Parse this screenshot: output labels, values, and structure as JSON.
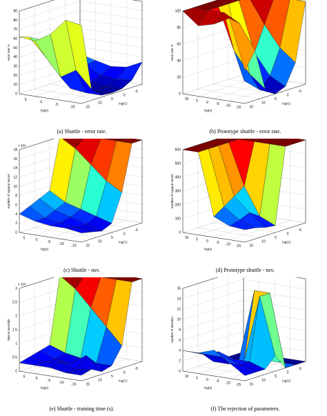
{
  "colormap": [
    "#00008f",
    "#0000ff",
    "#007fff",
    "#00ffff",
    "#7fff7f",
    "#ffff00",
    "#ff7f00",
    "#ff0000",
    "#7f0000"
  ],
  "chart_data": [
    {
      "type": "surface3d",
      "caption": "(a)  Shuttle - error rate.",
      "xlabel": "log(γ)",
      "ylabel": "log(C)",
      "zlabel": "error rate %",
      "x_ticks": [
        "-10",
        "-5",
        "0",
        "5"
      ],
      "y_ticks": [
        "15",
        "10",
        "5",
        "0",
        "-5"
      ],
      "z_ticks": [
        "90",
        "80",
        "70",
        "60",
        "50",
        "40",
        "30",
        "20",
        "10",
        "0"
      ],
      "z_multiplier": "",
      "zlim": [
        0,
        90
      ],
      "surface": [
        [
          22,
          28,
          34,
          42,
          52,
          58,
          62
        ],
        [
          18,
          16,
          14,
          18,
          28,
          40,
          60
        ],
        [
          14,
          8,
          4,
          2,
          4,
          20,
          70
        ],
        [
          16,
          6,
          2,
          1,
          2,
          30,
          88
        ],
        [
          24,
          8,
          2,
          1,
          2,
          12,
          85
        ]
      ]
    },
    {
      "type": "surface3d",
      "caption": "(b)  Prototype shuttle - error rate.",
      "xlabel": "log(γ)",
      "ylabel": "log(C)",
      "zlabel": "error rate %",
      "x_ticks": [
        "-15",
        "-10",
        "-5",
        "0",
        "5",
        "10"
      ],
      "y_ticks": [
        "15",
        "10",
        "5",
        "0",
        "-5"
      ],
      "z_ticks": [
        "100",
        "80",
        "60",
        "40",
        "20",
        "0"
      ],
      "z_multiplier": "",
      "zlim": [
        0,
        100
      ],
      "surface": [
        [
          100,
          100,
          100,
          100,
          100,
          100,
          100
        ],
        [
          100,
          100,
          100,
          100,
          100,
          100,
          85
        ],
        [
          100,
          70,
          40,
          10,
          50,
          100,
          90
        ],
        [
          100,
          45,
          15,
          2,
          25,
          90,
          100
        ],
        [
          100,
          30,
          5,
          0,
          10,
          60,
          40
        ]
      ]
    },
    {
      "type": "surface3d",
      "caption": "(c)  Shuttle - nsv.",
      "xlabel": "log(γ)",
      "ylabel": "log(C)",
      "zlabel": "number of support vector",
      "x_ticks": [
        "-15",
        "-10",
        "-5",
        "0",
        "5"
      ],
      "y_ticks": [
        "15",
        "10",
        "5",
        "0",
        "-5"
      ],
      "z_ticks": [
        "18",
        "16",
        "14",
        "12",
        "10",
        "8",
        "6",
        "4",
        "2",
        "0"
      ],
      "z_multiplier": "× 10⁴",
      "zlim": [
        0,
        18
      ],
      "surface": [
        [
          18,
          18,
          18,
          7,
          6,
          5,
          4
        ],
        [
          18,
          18,
          16,
          5,
          4,
          3,
          3
        ],
        [
          18,
          18,
          13,
          4,
          3,
          2.5,
          2.5
        ],
        [
          18,
          18,
          10,
          3,
          2,
          2,
          2.5
        ],
        [
          18,
          18,
          8,
          2,
          1,
          1.5,
          2
        ]
      ]
    },
    {
      "type": "surface3d",
      "caption": "(d)  Prototype shuttle - nsv.",
      "xlabel": "log(γ)",
      "ylabel": "log(C)",
      "zlabel": "number of support vector",
      "x_ticks": [
        "-15",
        "-10",
        "-5",
        "0",
        "5",
        "10"
      ],
      "y_ticks": [
        "15",
        "10",
        "5",
        "0",
        "-5"
      ],
      "z_ticks": [
        "600",
        "500",
        "400",
        "300",
        "200",
        "100",
        "0"
      ],
      "z_multiplier": "",
      "zlim": [
        0,
        600
      ],
      "surface": [
        [
          600,
          600,
          600,
          600,
          600,
          600,
          600
        ],
        [
          600,
          600,
          600,
          600,
          600,
          600,
          600
        ],
        [
          600,
          600,
          600,
          300,
          250,
          200,
          150
        ],
        [
          600,
          600,
          600,
          100,
          150,
          120,
          100
        ],
        [
          600,
          600,
          600,
          50,
          60,
          80,
          90
        ]
      ]
    },
    {
      "type": "surface3d",
      "caption": "(e)  Shuttle - training time (s).",
      "xlabel": "log(γ)",
      "ylabel": "log(C)",
      "zlabel": "time in seconds",
      "x_ticks": [
        "-15",
        "-10",
        "-5",
        "0",
        "5"
      ],
      "y_ticks": [
        "15",
        "10",
        "5",
        "0",
        "-5"
      ],
      "z_ticks": [
        "3",
        "2.5",
        "2",
        "1.5",
        "1",
        "0.5",
        "0"
      ],
      "z_multiplier": "× 10⁴",
      "zlim": [
        0,
        3
      ],
      "surface": [
        [
          3,
          3,
          3,
          0.6,
          0.5,
          0.4,
          0.3
        ],
        [
          3,
          3,
          2.6,
          0.4,
          0.3,
          0.3,
          0.3
        ],
        [
          3,
          3,
          2.0,
          0.3,
          0.2,
          0.4,
          0.3
        ],
        [
          3,
          3,
          1.4,
          0.2,
          0.6,
          0.2,
          0.2
        ],
        [
          3,
          3,
          0.8,
          0.2,
          0.1,
          0.3,
          0.2
        ]
      ]
    },
    {
      "type": "surface3d",
      "caption": "(f)  The rejection of parameters.",
      "xlabel": "log(γ)",
      "ylabel": "log(C)",
      "zlabel": "number of iteration",
      "x_ticks": [
        "-15",
        "-10",
        "-5",
        "0",
        "5",
        "10"
      ],
      "y_ticks": [
        "15",
        "10",
        "5",
        "0",
        "-5"
      ],
      "z_ticks": [
        "16",
        "14",
        "12",
        "10",
        "8",
        "6",
        "4",
        "2",
        "0"
      ],
      "z_multiplier": "",
      "zlim": [
        0,
        16
      ],
      "surface": [
        [
          0,
          0,
          0,
          0,
          2,
          3,
          4
        ],
        [
          0,
          0,
          0,
          0,
          3,
          3,
          4
        ],
        [
          0,
          0,
          14,
          1,
          2,
          3,
          5
        ],
        [
          0,
          0,
          14,
          14,
          2,
          2,
          3
        ],
        [
          0,
          0,
          0,
          3,
          1,
          1,
          1
        ]
      ]
    }
  ]
}
